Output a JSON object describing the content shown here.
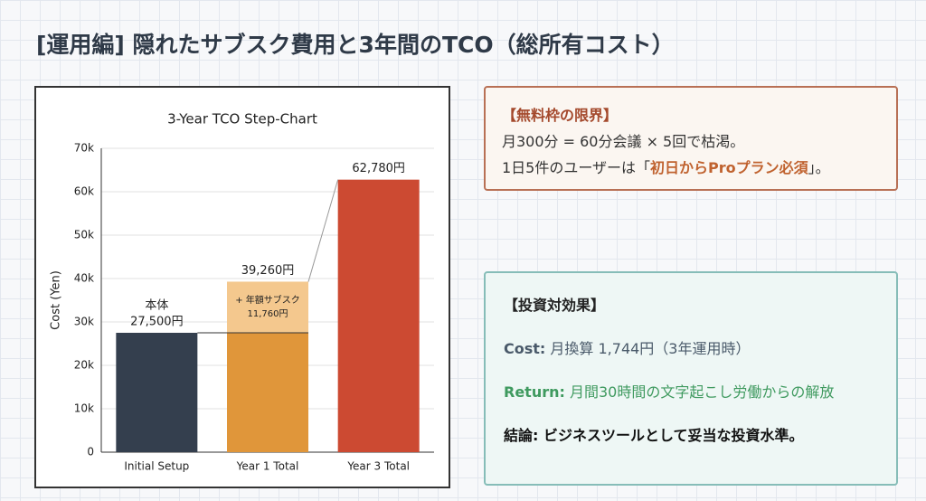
{
  "header": {
    "title": "[運用編] 隠れたサブスク費用と3年間のTCO（総所有コスト）"
  },
  "chart_data": {
    "type": "step-bar",
    "title": "3-Year TCO Step-Chart",
    "y_label": "Cost (Yen)",
    "categories": [
      "Initial Setup",
      "Year 1 Total",
      "Year 3 Total"
    ],
    "values": [
      27500,
      39260,
      62780
    ],
    "value_labels": [
      "27,500円",
      "39,260円",
      "62,780円"
    ],
    "colors": [
      "#343f4e",
      "#e0963a",
      "#cc4a32"
    ],
    "base_annotation": "本体",
    "subscription": {
      "label": "+ 年額サブスク",
      "value": 11760,
      "value_label": "11,760円",
      "color": "#f4c88e"
    },
    "ylim": [
      0,
      70000
    ],
    "yticks": [
      0,
      {
        "value": 10000,
        "label": "10k"
      },
      {
        "value": 20000,
        "label": "20k"
      },
      {
        "value": 30000,
        "label": "30k"
      },
      {
        "value": 40000,
        "label": "40k"
      },
      {
        "value": 50000,
        "label": "50k"
      },
      {
        "value": 60000,
        "label": "60k"
      },
      {
        "value": 70000,
        "label": "70k"
      }
    ],
    "grid": true
  },
  "limit_box": {
    "heading": "【無料枠の限界】",
    "line1": "月300分 = 60分会議 × 5回で枯渇。",
    "line2": {
      "before": "1日5件のユーザーは「",
      "highlight": "初日からProプラン必須",
      "after": "」。"
    }
  },
  "roi_box": {
    "heading": "【投資対効果】",
    "cost": {
      "label": "Cost:",
      "text": "月換算 1,744円（3年運用時）"
    },
    "return": {
      "label": "Return:",
      "text": "月間30時間の文字起こし労働からの解放"
    },
    "conclusion": {
      "label": "結論:",
      "text": "ビジネスツールとして妥当な投資水準。"
    }
  }
}
